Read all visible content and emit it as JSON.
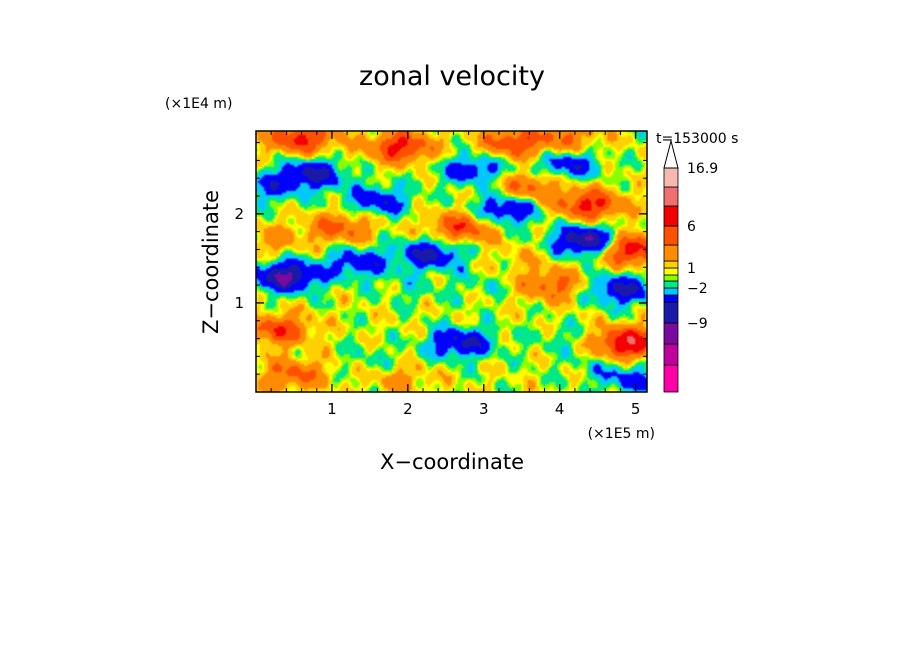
{
  "chart_data": {
    "type": "heatmap",
    "title": "zonal velocity",
    "xlabel": "X−coordinate",
    "ylabel": "Z−coordinate",
    "x_scale_note": "(×1E5 m)",
    "y_scale_note": "(×1E4 m)",
    "time_label": "t=153000 s",
    "xlim": [
      0,
      5.15
    ],
    "ylim": [
      0,
      2.93
    ],
    "x_ticks": [
      1,
      2,
      3,
      4,
      5
    ],
    "y_ticks": [
      1,
      2
    ],
    "x_tick_labels": [
      "1",
      "2",
      "3",
      "4",
      "5"
    ],
    "y_tick_labels": [
      "1",
      "2"
    ],
    "colorbar": {
      "colors": [
        "#ff00a8",
        "#c0009e",
        "#7a0a9e",
        "#1a1aa8",
        "#0000ff",
        "#00c8ff",
        "#00e888",
        "#88ff00",
        "#ffff00",
        "#ffd000",
        "#ff8c00",
        "#ff5000",
        "#f40000",
        "#f07070",
        "#f8b8b0"
      ],
      "labels": [
        "16.9",
        "6",
        "1",
        "−2",
        "−9"
      ],
      "extend": "max"
    },
    "features": [
      {
        "x": 0.75,
        "z": 2.45,
        "v": -5
      },
      {
        "x": 1.6,
        "z": 2.15,
        "v": -4
      },
      {
        "x": 2.3,
        "z": 1.55,
        "v": -5
      },
      {
        "x": 2.85,
        "z": 2.5,
        "v": -4
      },
      {
        "x": 3.3,
        "z": 2.05,
        "v": -5
      },
      {
        "x": 4.1,
        "z": 2.55,
        "v": -4
      },
      {
        "x": 4.35,
        "z": 1.7,
        "v": -7
      },
      {
        "x": 4.8,
        "z": 1.15,
        "v": -5
      },
      {
        "x": 0.4,
        "z": 1.3,
        "v": -7
      },
      {
        "x": 1.35,
        "z": 1.45,
        "v": -4
      },
      {
        "x": 2.7,
        "z": 0.55,
        "v": -5
      },
      {
        "x": 4.95,
        "z": 0.15,
        "v": -3
      },
      {
        "x": 0.15,
        "z": 2.3,
        "v": -3
      },
      {
        "x": 0.6,
        "z": 2.85,
        "v": 6
      },
      {
        "x": 1.9,
        "z": 2.75,
        "v": 6
      },
      {
        "x": 3.4,
        "z": 2.8,
        "v": 5
      },
      {
        "x": 4.4,
        "z": 2.1,
        "v": 6
      },
      {
        "x": 4.95,
        "z": 1.6,
        "v": 7
      },
      {
        "x": 4.9,
        "z": 0.55,
        "v": 8
      },
      {
        "x": 0.3,
        "z": 0.7,
        "v": 5
      },
      {
        "x": 1.1,
        "z": 1.85,
        "v": 4
      },
      {
        "x": 2.7,
        "z": 1.85,
        "v": 5
      },
      {
        "x": 3.9,
        "z": 1.2,
        "v": 4
      },
      {
        "x": 0.5,
        "z": 0.2,
        "v": 4
      },
      {
        "x": 3.6,
        "z": 2.3,
        "v": 4
      },
      {
        "x": 1.55,
        "z": 0.35,
        "v": -1
      },
      {
        "x": 3.4,
        "z": 0.75,
        "v": 0
      },
      {
        "x": 4.1,
        "z": 0.6,
        "v": -1
      },
      {
        "x": 4.5,
        "z": 0.3,
        "v": -1
      },
      {
        "x": 2.0,
        "z": 1.15,
        "v": -1
      },
      {
        "x": 1.0,
        "z": 0.9,
        "v": 0
      },
      {
        "x": 2.5,
        "z": 0.75,
        "v": 0
      },
      {
        "x": 2.95,
        "z": 1.2,
        "v": -1
      },
      {
        "x": 3.5,
        "z": 1.5,
        "v": 1
      },
      {
        "x": 0.2,
        "z": 1.7,
        "v": 2
      },
      {
        "x": 1.9,
        "z": 0.15,
        "v": 2
      },
      {
        "x": 4.1,
        "z": 2.85,
        "v": 3
      }
    ]
  }
}
